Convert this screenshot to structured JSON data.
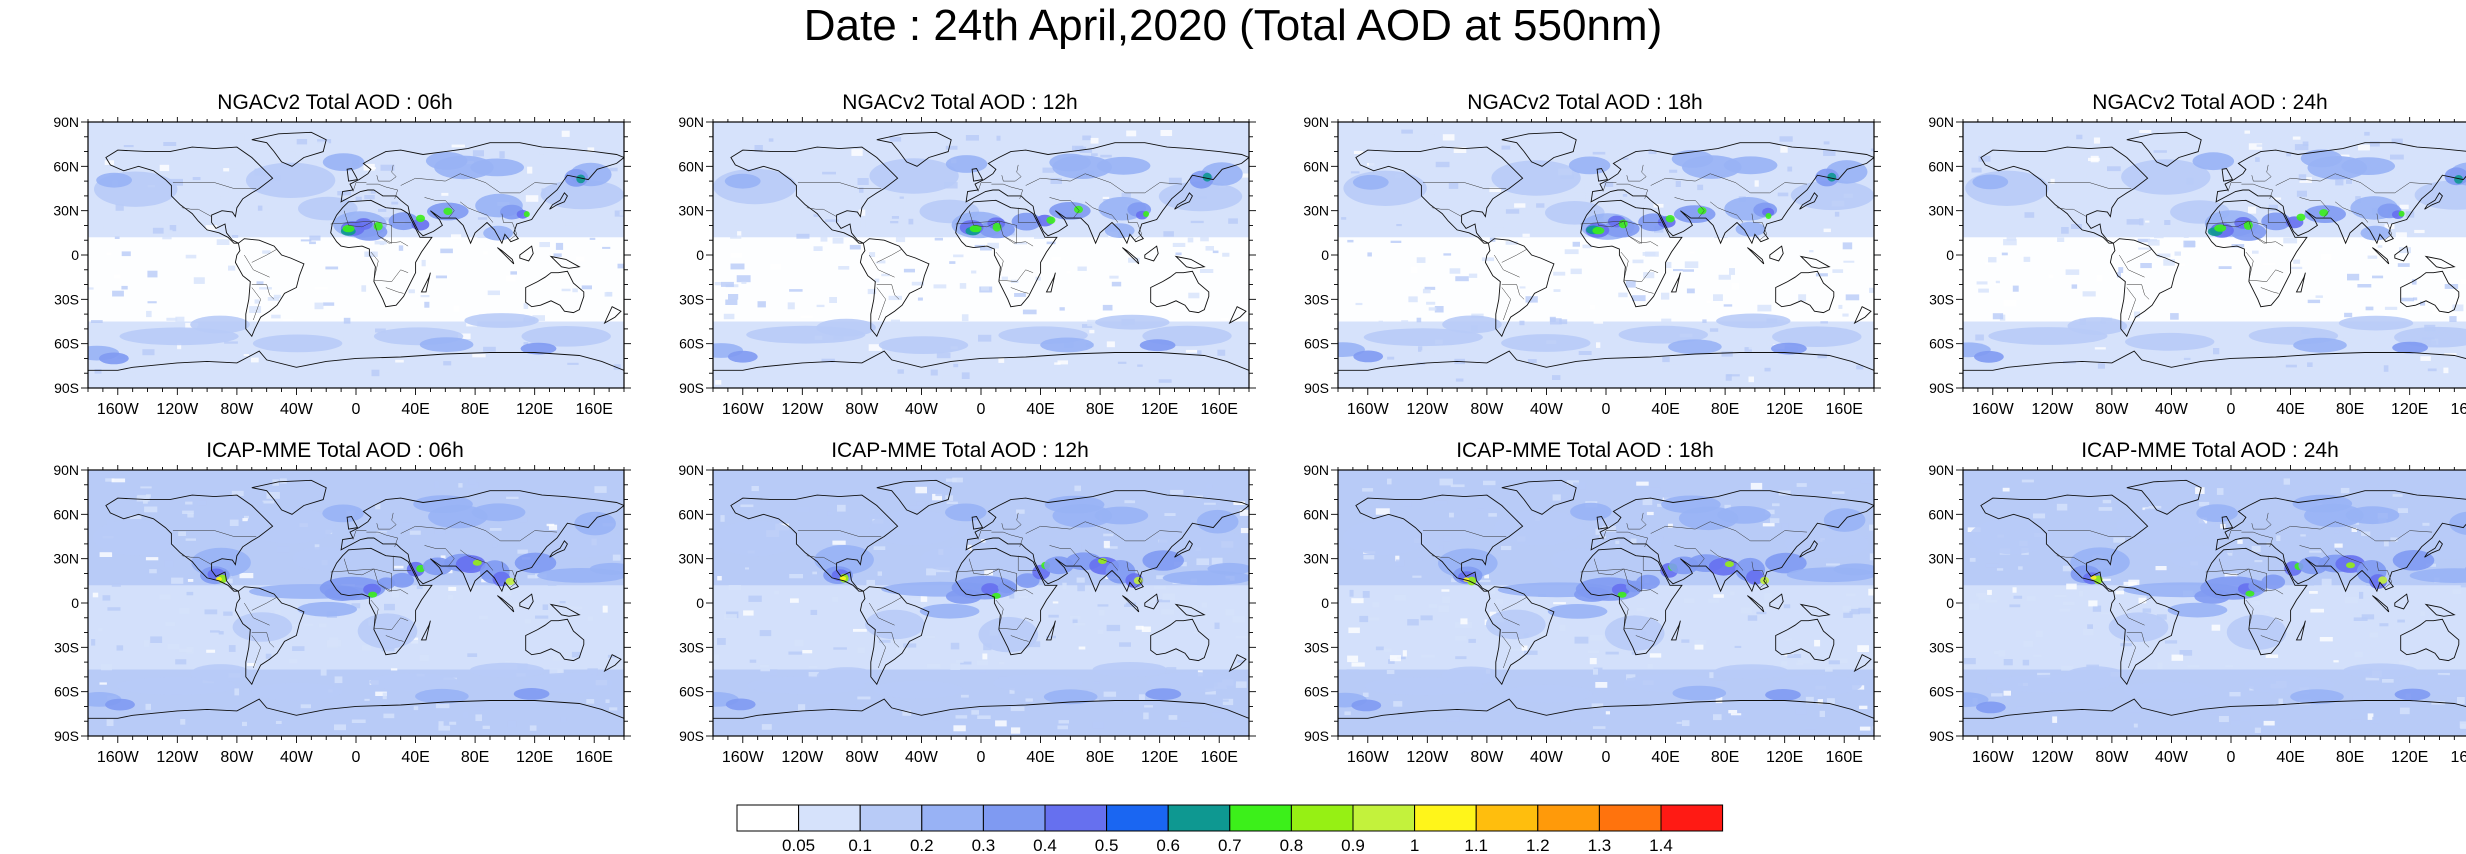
{
  "title": "Date : 24th April,2020 (Total AOD at 550nm)",
  "lat_labels": [
    "90N",
    "60N",
    "30N",
    "0",
    "30S",
    "60S",
    "90S"
  ],
  "lon_labels": [
    "160W",
    "120W",
    "80W",
    "40W",
    "0",
    "40E",
    "80E",
    "120E",
    "160E"
  ],
  "panels": [
    {
      "title": "NGACv2 Total AOD : 06h"
    },
    {
      "title": "NGACv2 Total AOD : 12h"
    },
    {
      "title": "NGACv2 Total AOD : 18h"
    },
    {
      "title": "NGACv2 Total AOD : 24h"
    },
    {
      "title": "ICAP-MME Total AOD : 06h"
    },
    {
      "title": "ICAP-MME Total AOD : 12h"
    },
    {
      "title": "ICAP-MME Total AOD : 18h"
    },
    {
      "title": "ICAP-MME Total AOD : 24h"
    }
  ],
  "colorbar": {
    "labels": [
      "0.05",
      "0.1",
      "0.2",
      "0.3",
      "0.4",
      "0.5",
      "0.6",
      "0.7",
      "0.8",
      "0.9",
      "1",
      "1.1",
      "1.2",
      "1.3",
      "1.4"
    ],
    "colors": [
      "#ffffff",
      "#d6e2fb",
      "#b8cbf7",
      "#98b2f5",
      "#7f9af2",
      "#6670ef",
      "#1a66f2",
      "#0e9891",
      "#3cf01a",
      "#96f014",
      "#c3f23c",
      "#fff51a",
      "#ffbe0d",
      "#ff9a0a",
      "#ff730d",
      "#ff1a14"
    ]
  }
}
